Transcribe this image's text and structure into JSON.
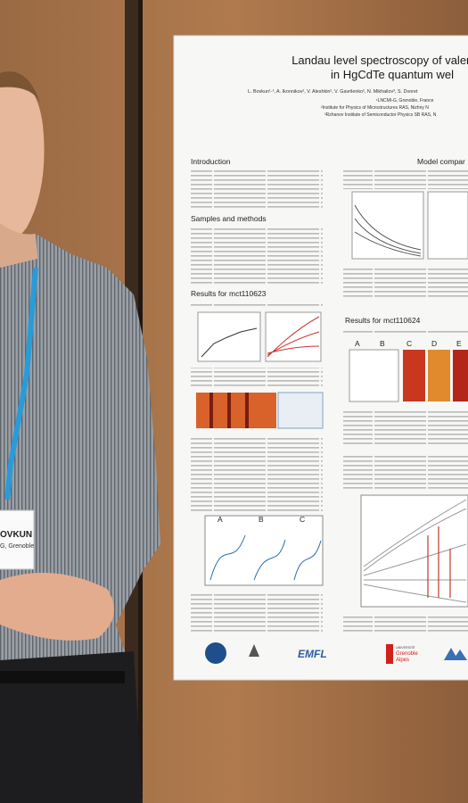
{
  "poster": {
    "title": [
      "Landau level spectroscopy of valenc",
      "in HgCdTe quantum wel"
    ],
    "authors": "L. Bovkun¹·², A. Ikonnikov², V. Aleshkin², V. Gavrilenko², N. Mikhailov³, S. Dvoret",
    "affiliations": [
      "¹LNCMI-G, Grenoble, France",
      "²Institute for Physics of Microstructures RAS, Nizhny N",
      "³Rzhanov Institute of Semiconductor Physics SB RAS, N"
    ],
    "sections": [
      "Introduction",
      "Samples and methods",
      "Results for mct110623",
      "Model compar",
      "Results for mct110624"
    ],
    "panel_labels": [
      "A",
      "B",
      "C",
      "D",
      "E"
    ],
    "logos": [
      "EMFL",
      "UNIVERSITÉ",
      "Grenoble",
      "Alpes"
    ]
  },
  "badge": [
    "OVKUN",
    "G, Grenoble"
  ]
}
